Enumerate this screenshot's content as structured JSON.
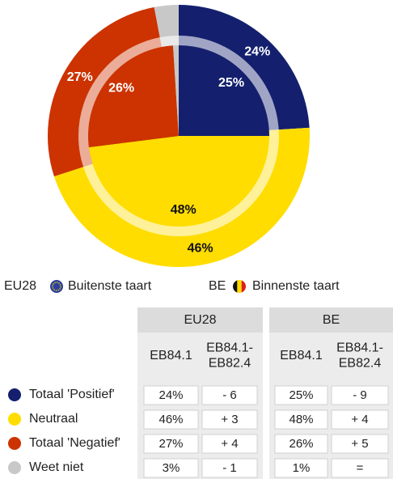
{
  "chart_data": {
    "type": "pie",
    "categories": [
      "Totaal 'Positief'",
      "Neutraal",
      "Totaal 'Negatief'",
      "Weet niet"
    ],
    "colors": [
      "#14206e",
      "#ffdd00",
      "#cc3300",
      "#c8c8c8"
    ],
    "series": [
      {
        "name": "EU28",
        "description": "Buitenste taart",
        "values": [
          24,
          46,
          27,
          3
        ],
        "value_labels": [
          "24%",
          "46%",
          "27%",
          null
        ]
      },
      {
        "name": "BE",
        "description": "Binnenste taart",
        "values": [
          25,
          48,
          26,
          1
        ],
        "value_labels": [
          "25%",
          "48%",
          "26%",
          null
        ]
      }
    ]
  },
  "table": {
    "groups": [
      {
        "name": "EU28",
        "subheaders": [
          [
            "EB84.1"
          ],
          [
            "EB84.1-",
            "EB82.4"
          ]
        ]
      },
      {
        "name": "BE",
        "subheaders": [
          [
            "EB84.1"
          ],
          [
            "EB84.1-",
            "EB82.4"
          ]
        ]
      }
    ],
    "rows": [
      [
        "24%",
        "- 6",
        "25%",
        "- 9"
      ],
      [
        "46%",
        "+ 3",
        "48%",
        "+ 4"
      ],
      [
        "27%",
        "+ 4",
        "26%",
        "+ 5"
      ],
      [
        "3%",
        "- 1",
        "1%",
        "="
      ]
    ]
  }
}
